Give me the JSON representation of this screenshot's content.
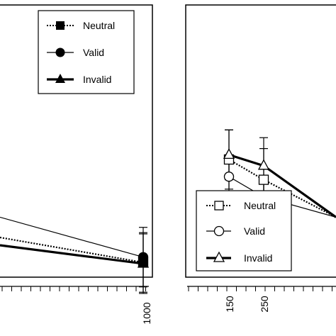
{
  "chart_data": [
    {
      "type": "line",
      "panel": "left",
      "x_tick_labels": [
        "1000"
      ],
      "series": [
        {
          "name": "Neutral",
          "line_style": "dotted",
          "marker": "filled-square",
          "points": [
            {
              "x": 1000,
              "y": 0.45,
              "err": 0.14
            }
          ]
        },
        {
          "name": "Valid",
          "line_style": "thin",
          "marker": "filled-circle",
          "points": [
            {
              "x": 1000,
              "y": 0.62,
              "err": 0.14
            }
          ]
        },
        {
          "name": "Invalid",
          "line_style": "thick",
          "marker": "filled-triangle",
          "points": [
            {
              "x": 1000,
              "y": 0.41,
              "err": 0.14
            }
          ]
        }
      ],
      "left_edge_y": {
        "Neutral": 1.25,
        "Valid": 1.9,
        "Invalid": 1.0
      },
      "legend": {
        "placement": "top-right",
        "entries": [
          {
            "label": "Neutral",
            "key": "neutral"
          },
          {
            "label": "Valid",
            "key": "valid"
          },
          {
            "label": "Invalid",
            "key": "invalid"
          }
        ]
      }
    },
    {
      "type": "line",
      "panel": "right",
      "x_tick_labels": [
        "150",
        "250"
      ],
      "series": [
        {
          "name": "Neutral",
          "line_style": "dotted",
          "marker": "open-square",
          "points": [
            {
              "x": 150,
              "y": 3.75,
              "err": 0.95
            },
            {
              "x": 250,
              "y": 3.1,
              "err": 1.0
            }
          ]
        },
        {
          "name": "Valid",
          "line_style": "thin",
          "marker": "open-circle",
          "points": [
            {
              "x": 150,
              "y": 3.2,
              "err": 0.7
            },
            {
              "x": 250,
              "y": 2.55,
              "err": 0.65
            }
          ]
        },
        {
          "name": "Invalid",
          "line_style": "thick",
          "marker": "open-triangle",
          "points": [
            {
              "x": 150,
              "y": 3.9,
              "err": 0.8
            },
            {
              "x": 250,
              "y": 3.55,
              "err": 0.9
            }
          ]
        }
      ],
      "right_edge_y": {
        "Neutral": 1.9,
        "Valid": 1.9,
        "Invalid": 1.9
      },
      "legend": {
        "placement": "bottom-left",
        "entries": [
          {
            "label": "Neutral",
            "key": "neutral"
          },
          {
            "label": "Valid",
            "key": "valid"
          },
          {
            "label": "Invalid",
            "key": "invalid"
          }
        ]
      }
    }
  ]
}
